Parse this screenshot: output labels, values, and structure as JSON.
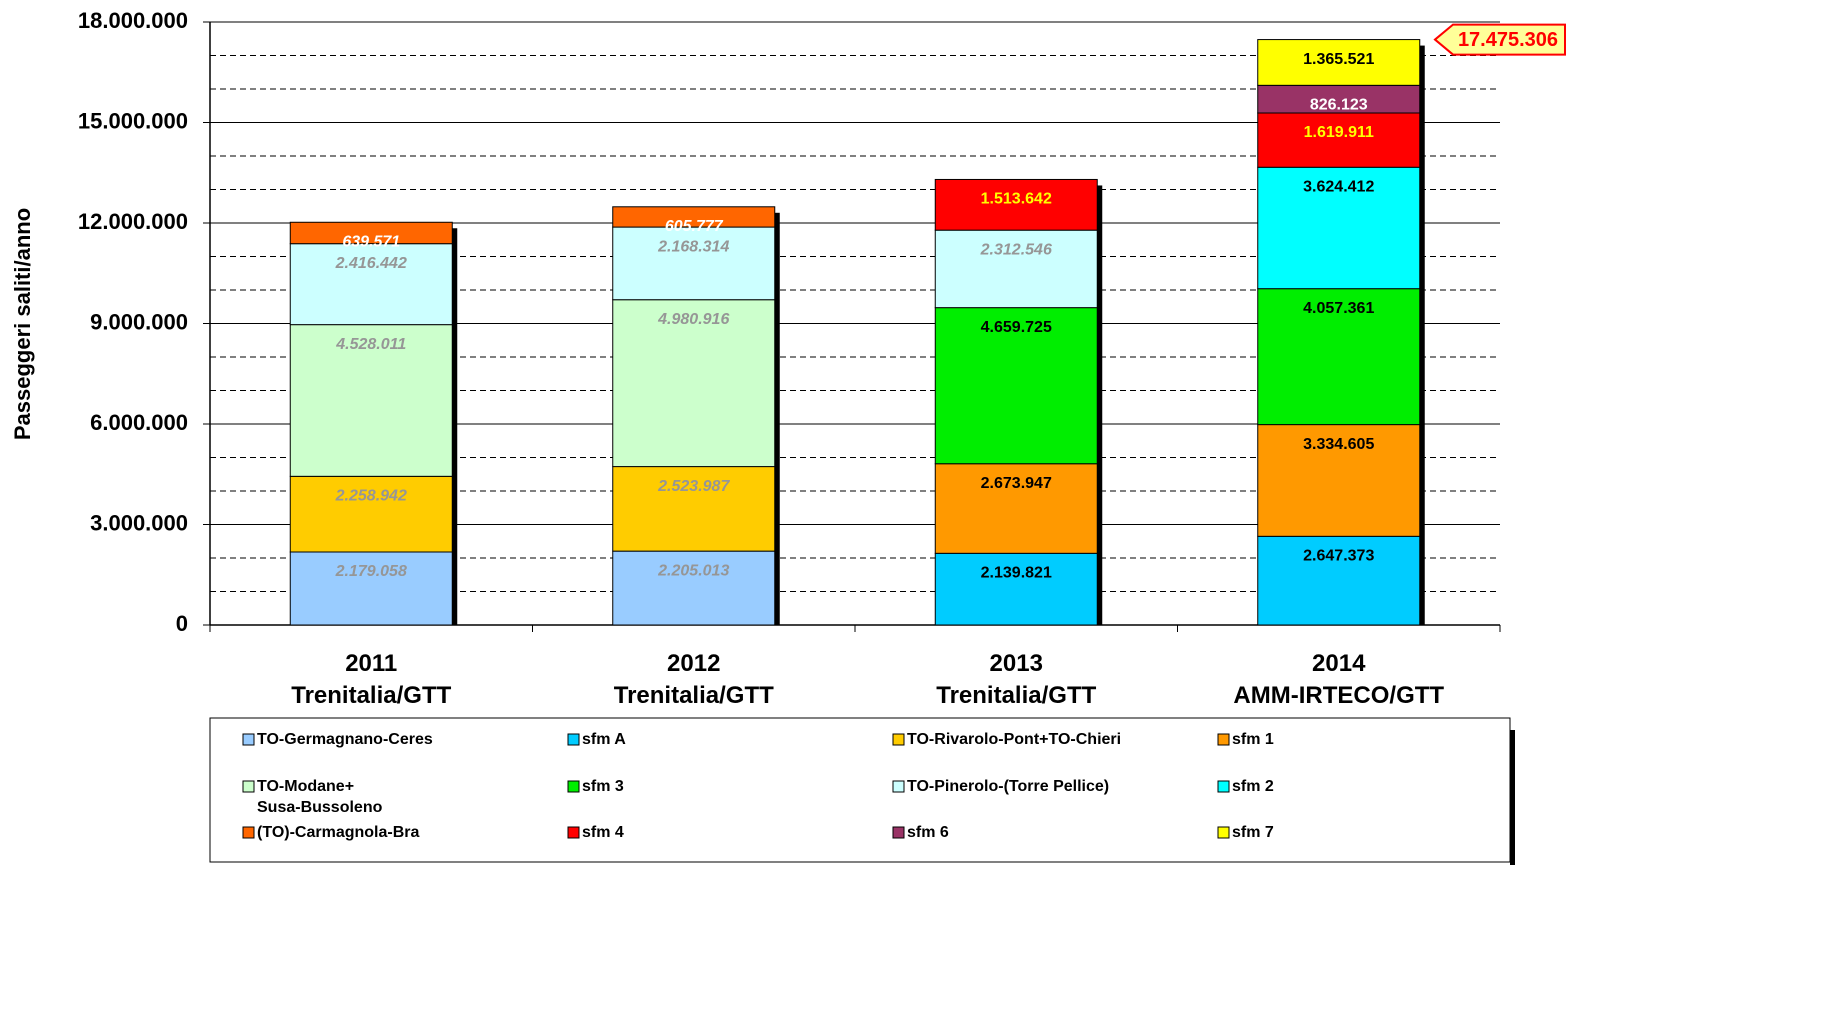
{
  "chart_data": {
    "type": "stacked_bar",
    "ylabel": "Passeggeri saliti/anno",
    "categories": [
      "2011\nTrenitalia/GTT",
      "2012\nTrenitalia/GTT",
      "2013\nTrenitalia/GTT",
      "2014\nAMM-IRTECO/GTT"
    ],
    "ylim": [
      0,
      18000000
    ],
    "yticks": [
      0,
      {
        "value": 3000000,
        "label": "3.000.000"
      },
      {
        "value": 6000000,
        "label": "6.000.000"
      },
      {
        "value": 9000000,
        "label": "9.000.000"
      },
      {
        "value": 12000000,
        "label": "12.000.000"
      },
      {
        "value": 15000000,
        "label": "15.000.000"
      },
      {
        "value": 18000000,
        "label": "18.000.000"
      }
    ],
    "minor_yticks": [
      1000000,
      2000000,
      4000000,
      5000000,
      7000000,
      8000000,
      10000000,
      11000000,
      13000000,
      14000000,
      16000000,
      17000000
    ],
    "grid": true,
    "series": [
      {
        "name": "TO-Germagnano-Ceres",
        "color": "#99ccff",
        "label_color": "#969696",
        "label_italic": true,
        "values": [
          2179058,
          2205013,
          null,
          null
        ],
        "value_labels": [
          "2.179.058",
          "2.205.013",
          null,
          null
        ]
      },
      {
        "name": "sfm A",
        "color": "#00ccff",
        "label_color": "#000000",
        "label_italic": false,
        "values": [
          null,
          null,
          2139821,
          2647373
        ],
        "value_labels": [
          null,
          null,
          "2.139.821",
          "2.647.373"
        ]
      },
      {
        "name": "TO-Rivarolo-Pont+TO-Chieri",
        "color": "#ffcc00",
        "label_color": "#969696",
        "label_italic": true,
        "values": [
          2258942,
          2523987,
          null,
          null
        ],
        "value_labels": [
          "2.258.942",
          "2.523.987",
          null,
          null
        ]
      },
      {
        "name": "sfm 1",
        "color": "#ff9900",
        "label_color": "#000000",
        "label_italic": false,
        "values": [
          null,
          null,
          2673947,
          3334605
        ],
        "value_labels": [
          null,
          null,
          "2.673.947",
          "3.334.605"
        ]
      },
      {
        "name": "TO-Modane+\nSusa-Bussoleno",
        "color": "#ccffcc",
        "label_color": "#969696",
        "label_italic": true,
        "values": [
          4528011,
          4980916,
          null,
          null
        ],
        "value_labels": [
          "4.528.011",
          "4.980.916",
          null,
          null
        ]
      },
      {
        "name": "sfm 3",
        "color": "#00ee00",
        "label_color": "#000000",
        "label_italic": false,
        "values": [
          null,
          null,
          4659725,
          4057361
        ],
        "value_labels": [
          null,
          null,
          "4.659.725",
          "4.057.361"
        ]
      },
      {
        "name": "TO-Pinerolo-(Torre Pellice)",
        "color": "#ccffff",
        "label_color": "#969696",
        "label_italic": true,
        "values": [
          2416442,
          2168314,
          2312546,
          null
        ],
        "value_labels": [
          "2.416.442",
          "2.168.314",
          "2.312.546",
          null
        ]
      },
      {
        "name": "sfm 2",
        "color": "#00ffff",
        "label_color": "#000000",
        "label_italic": false,
        "values": [
          null,
          null,
          null,
          3624412
        ],
        "value_labels": [
          null,
          null,
          null,
          "3.624.412"
        ]
      },
      {
        "name": "(TO)-Carmagnola-Bra",
        "color": "#ff6600",
        "label_color": "#ffffff",
        "label_italic": true,
        "values": [
          639571,
          605777,
          null,
          null
        ],
        "value_labels": [
          "639.571",
          "605.777",
          null,
          null
        ]
      },
      {
        "name": "sfm 4",
        "color": "#ff0000",
        "label_color": "#ffff00",
        "label_italic": false,
        "values": [
          null,
          null,
          1513642,
          1619911
        ],
        "value_labels": [
          null,
          null,
          "1.513.642",
          "1.619.911"
        ]
      },
      {
        "name": "sfm 6",
        "color": "#993366",
        "label_color": "#ffffff",
        "label_italic": false,
        "values": [
          null,
          null,
          null,
          826123
        ],
        "value_labels": [
          null,
          null,
          null,
          "826.123"
        ]
      },
      {
        "name": "sfm 7",
        "color": "#ffff00",
        "label_color": "#000000",
        "label_italic": false,
        "values": [
          null,
          null,
          null,
          1365521
        ],
        "value_labels": [
          null,
          null,
          null,
          "1.365.521"
        ]
      }
    ],
    "annotation": {
      "value": 17475306,
      "label": "17.475.306"
    }
  }
}
